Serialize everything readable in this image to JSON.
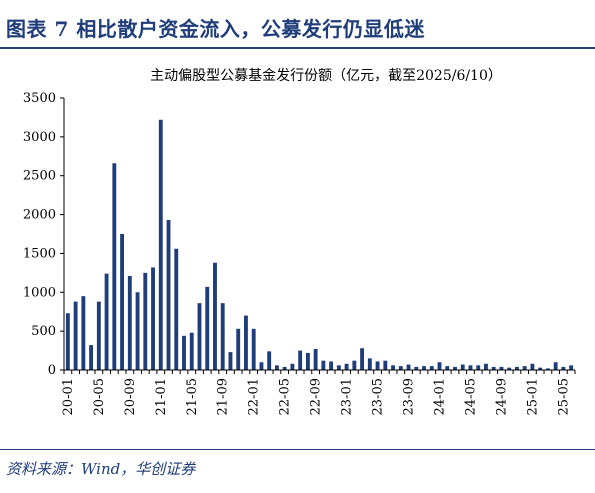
{
  "figure": {
    "title": "图表 7   相比散户资金流入，公募发行仍显低迷",
    "source": "资料来源：Wind，华创证券"
  },
  "colors": {
    "bar": "#1f3d7a",
    "axis": "#000000",
    "heading": "#1f3d7a"
  },
  "chart_data": {
    "type": "bar",
    "title": "主动偏股型公募基金发行份额（亿元，截至2025/6/10）",
    "xlabel": "",
    "ylabel": "",
    "ylim": [
      0,
      3500
    ],
    "yticks": [
      0,
      500,
      1000,
      1500,
      2000,
      2500,
      3000,
      3500
    ],
    "grid": false,
    "legend": "none",
    "categories": [
      "20-01",
      "20-02",
      "20-03",
      "20-04",
      "20-05",
      "20-06",
      "20-07",
      "20-08",
      "20-09",
      "20-10",
      "20-11",
      "20-12",
      "21-01",
      "21-02",
      "21-03",
      "21-04",
      "21-05",
      "21-06",
      "21-07",
      "21-08",
      "21-09",
      "21-10",
      "21-11",
      "21-12",
      "22-01",
      "22-02",
      "22-03",
      "22-04",
      "22-05",
      "22-06",
      "22-07",
      "22-08",
      "22-09",
      "22-10",
      "22-11",
      "22-12",
      "23-01",
      "23-02",
      "23-03",
      "23-04",
      "23-05",
      "23-06",
      "23-07",
      "23-08",
      "23-09",
      "23-10",
      "23-11",
      "23-12",
      "24-01",
      "24-02",
      "24-03",
      "24-04",
      "24-05",
      "24-06",
      "24-07",
      "24-08",
      "24-09",
      "24-10",
      "24-11",
      "24-12",
      "25-01",
      "25-02",
      "25-03",
      "25-04",
      "25-05",
      "25-06"
    ],
    "tick_labels": [
      "20-01",
      "20-05",
      "20-09",
      "21-01",
      "21-05",
      "21-09",
      "22-01",
      "22-05",
      "22-09",
      "23-01",
      "23-05",
      "23-09",
      "24-01",
      "24-05",
      "24-09",
      "25-01",
      "25-05"
    ],
    "values": [
      730,
      880,
      950,
      320,
      880,
      1240,
      2660,
      1750,
      1210,
      1000,
      1250,
      1320,
      3220,
      1930,
      1560,
      440,
      480,
      860,
      1070,
      1380,
      860,
      230,
      530,
      700,
      530,
      100,
      240,
      60,
      40,
      80,
      250,
      220,
      270,
      120,
      110,
      60,
      80,
      120,
      280,
      150,
      110,
      120,
      60,
      50,
      70,
      40,
      50,
      50,
      100,
      50,
      40,
      70,
      60,
      60,
      80,
      40,
      40,
      30,
      40,
      50,
      80,
      30,
      20,
      100,
      40,
      60
    ]
  }
}
